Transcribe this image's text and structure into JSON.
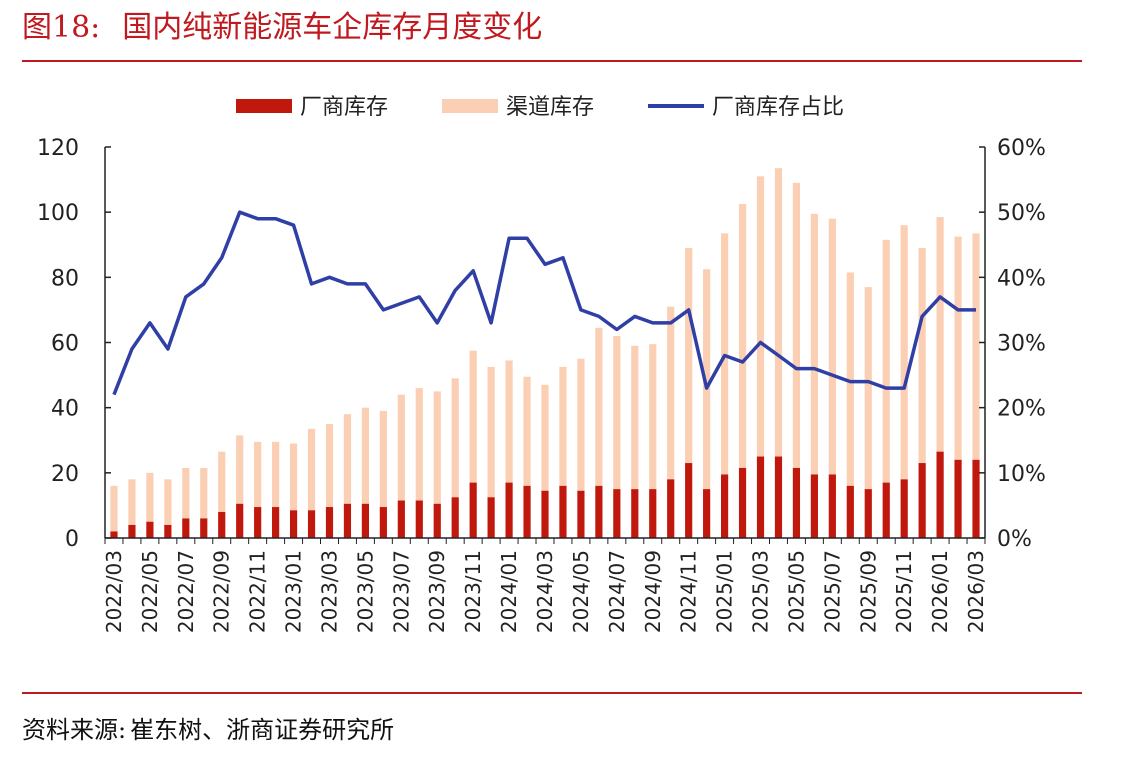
{
  "figure": {
    "number": "图18:",
    "title": "国内纯新能源车企库存月度变化"
  },
  "source": {
    "label": "资料来源:",
    "text": "崔东树、浙商证券研究所"
  },
  "colors": {
    "manufacturer": "#c0180c",
    "channel": "#fbcfb3",
    "ratio": "#2f3fa6",
    "accent": "#c0191f"
  },
  "chart_data": {
    "type": "bar",
    "stacked": true,
    "title": "",
    "xlabel": "",
    "ylabel": "",
    "categories": [
      "2022/03",
      "2022/04",
      "2022/05",
      "2022/06",
      "2022/07",
      "2022/08",
      "2022/09",
      "2022/10",
      "2022/11",
      "2022/12",
      "2023/01",
      "2023/02",
      "2023/03",
      "2023/04",
      "2023/05",
      "2023/06",
      "2023/07",
      "2023/08",
      "2023/09",
      "2023/10",
      "2023/11",
      "2023/12",
      "2024/01",
      "2024/02",
      "2024/03",
      "2024/04",
      "2024/05",
      "2024/06",
      "2024/07",
      "2024/08",
      "2024/09",
      "2024/10",
      "2024/11",
      "2024/12",
      "2025/01",
      "2025/02",
      "2025/03",
      "2025/04",
      "2025/05",
      "2025/06",
      "2025/07",
      "2025/08",
      "2025/09",
      "2025/10",
      "2025/11",
      "2025/12",
      "2026/01",
      "2026/02",
      "2026/03"
    ],
    "tick_labels": [
      "2022/03",
      "2022/05",
      "2022/07",
      "2022/09",
      "2022/11",
      "2023/01",
      "2023/03",
      "2023/05",
      "2023/07",
      "2023/09",
      "2023/11",
      "2024/01",
      "2024/03",
      "2024/05",
      "2024/07",
      "2024/09",
      "2024/11",
      "2025/01",
      "2025/03",
      "2025/05",
      "2025/07",
      "2025/09",
      "2025/11",
      "2026/01",
      "2026/03"
    ],
    "series": [
      {
        "name": "厂商库存",
        "kind": "bar",
        "axis": "left",
        "values": [
          2,
          4,
          5,
          4,
          6,
          6,
          8,
          10.5,
          9.5,
          9.5,
          8.5,
          8.5,
          9.5,
          10.5,
          10.5,
          9.5,
          11.5,
          11.5,
          10.5,
          12.5,
          17,
          12.5,
          17,
          16,
          14.5,
          16,
          14.5,
          16,
          15,
          15,
          15,
          18,
          23,
          15,
          19.5,
          21.5,
          25,
          25,
          21.5,
          19.5,
          19.5,
          16,
          15,
          17,
          18,
          23,
          26.5,
          24,
          24
        ]
      },
      {
        "name": "渠道库存",
        "kind": "bar",
        "axis": "left",
        "values": [
          14,
          14,
          15,
          14,
          15.5,
          15.5,
          18.5,
          21,
          20,
          20,
          20.5,
          25,
          25.5,
          27.5,
          29.5,
          29.5,
          32.5,
          34.5,
          34.5,
          36.5,
          40.5,
          40,
          37.5,
          33.5,
          32.5,
          36.5,
          40.5,
          48.5,
          47,
          44,
          44.5,
          53,
          66,
          67.5,
          74,
          81,
          86,
          88.5,
          87.5,
          80,
          78.5,
          65.5,
          62,
          74.5,
          78,
          66,
          72,
          68.5,
          69.5
        ]
      },
      {
        "name": "厂商库存占比",
        "kind": "line",
        "axis": "right",
        "values": [
          0.22,
          0.29,
          0.33,
          0.29,
          0.37,
          0.39,
          0.43,
          0.5,
          0.49,
          0.49,
          0.48,
          0.39,
          0.4,
          0.39,
          0.39,
          0.35,
          0.36,
          0.37,
          0.33,
          0.38,
          0.41,
          0.33,
          0.46,
          0.46,
          0.42,
          0.43,
          0.35,
          0.34,
          0.32,
          0.34,
          0.33,
          0.33,
          0.35,
          0.23,
          0.28,
          0.27,
          0.3,
          0.28,
          0.26,
          0.26,
          0.25,
          0.24,
          0.24,
          0.23,
          0.23,
          0.34,
          0.37,
          0.35,
          0.35
        ]
      }
    ],
    "left_axis": {
      "ylim": [
        0,
        120
      ],
      "ticks": [
        "0",
        "20",
        "40",
        "60",
        "80",
        "100",
        "120"
      ]
    },
    "right_axis": {
      "ylim": [
        0,
        0.6
      ],
      "ticks": [
        "0%",
        "10%",
        "20%",
        "30%",
        "40%",
        "50%",
        "60%"
      ]
    },
    "grid": false,
    "legend_position": "top"
  }
}
